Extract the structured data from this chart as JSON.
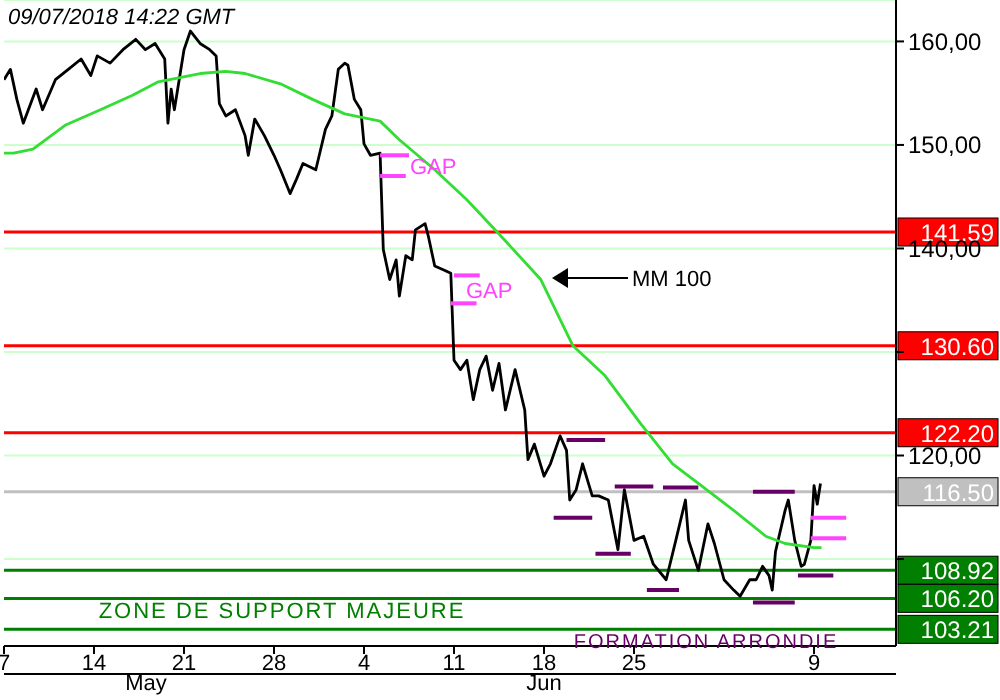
{
  "chart_data": {
    "type": "line",
    "xlim": [
      "2018-05-07T00:00",
      "2018-07-15T09:00"
    ],
    "xticks": [
      {
        "value": "2018-05-07",
        "label": "7"
      },
      {
        "value": "2018-05-14",
        "label": "14"
      },
      {
        "value": "2018-05-21",
        "label": "21"
      },
      {
        "value": "2018-05-28",
        "label": "28"
      },
      {
        "value": "2018-06-04",
        "label": "4"
      },
      {
        "value": "2018-06-11",
        "label": "11"
      },
      {
        "value": "2018-06-18",
        "label": "18"
      },
      {
        "value": "2018-06-25",
        "label": "25"
      },
      {
        "value": "2018-07-09",
        "label": "9"
      }
    ],
    "ylim": [
      101.6,
      164
    ],
    "yticks": [
      {
        "value": 110,
        "label": null
      },
      {
        "value": 120,
        "label": "120,00"
      },
      {
        "value": 130,
        "label": null
      },
      {
        "value": 140,
        "label": "140,00"
      },
      {
        "value": 150,
        "label": "150,00"
      },
      {
        "value": 160,
        "label": "160,00"
      }
    ],
    "grid": "y",
    "series": [
      {
        "color": "#000000",
        "x": [
          "2018-05-07T00:00",
          "2018-05-07T12:00",
          "2018-05-08T00:00",
          "2018-05-08T12:00",
          "2018-05-09T12:00",
          "2018-05-10T00:00",
          "2018-05-11T00:00",
          "2018-05-12T00:00",
          "2018-05-13T00:00",
          "2018-05-13T18:00",
          "2018-05-14T06:00",
          "2018-05-15T06:00",
          "2018-05-16T06:00",
          "2018-05-17T06:00",
          "2018-05-18T00:00",
          "2018-05-18T18:00",
          "2018-05-19T12:00",
          "2018-05-19T18:00",
          "2018-05-20T00:00",
          "2018-05-20T06:00",
          "2018-05-21T00:00",
          "2018-05-21T12:00",
          "2018-05-22T06:00",
          "2018-05-23T00:00",
          "2018-05-23T12:00",
          "2018-05-23T18:00",
          "2018-05-24T06:00",
          "2018-05-25T00:00",
          "2018-05-25T18:00",
          "2018-05-26T00:00",
          "2018-05-26T12:00",
          "2018-05-27T06:00",
          "2018-05-28T00:00",
          "2018-05-28T12:00",
          "2018-05-29T06:00",
          "2018-05-29T18:00",
          "2018-05-30T06:00",
          "2018-05-31T06:00",
          "2018-06-01T00:00",
          "2018-06-01T12:00",
          "2018-06-02T00:00",
          "2018-06-02T12:00",
          "2018-06-02T18:00",
          "2018-06-03T06:00",
          "2018-06-03T18:00",
          "2018-06-04T00:00",
          "2018-06-04T12:00",
          "2018-06-05T06:00",
          "2018-06-05T12:00",
          "2018-06-06T00:00",
          "2018-06-06T12:00",
          "2018-06-06T18:00",
          "2018-06-07T06:00",
          "2018-06-07T18:00",
          "2018-06-08T00:00",
          "2018-06-08T18:00",
          "2018-06-09T00:00",
          "2018-06-09T12:00",
          "2018-06-10T06:00",
          "2018-06-10T18:00",
          "2018-06-11T00:00",
          "2018-06-11T12:00",
          "2018-06-12T00:00",
          "2018-06-12T12:00",
          "2018-06-13T00:00",
          "2018-06-13T12:00",
          "2018-06-14T00:00",
          "2018-06-14T12:00",
          "2018-06-15T00:00",
          "2018-06-15T18:00",
          "2018-06-16T12:00",
          "2018-06-16T18:00",
          "2018-06-17T06:00",
          "2018-06-18T00:00",
          "2018-06-18T12:00",
          "2018-06-19T06:00",
          "2018-06-19T18:00",
          "2018-06-20T00:00",
          "2018-06-20T12:00",
          "2018-06-21T00:00",
          "2018-06-21T18:00",
          "2018-06-22T06:00",
          "2018-06-23T00:00",
          "2018-06-23T18:00",
          "2018-06-24T06:00",
          "2018-06-25T00:00",
          "2018-06-25T18:00",
          "2018-06-26T12:00",
          "2018-06-27T12:00",
          "2018-06-28T06:00",
          "2018-06-29T00:00",
          "2018-06-29T06:00",
          "2018-06-30T00:00",
          "2018-06-30T18:00",
          "2018-07-01T06:00",
          "2018-07-02T00:00",
          "2018-07-02T18:00",
          "2018-07-03T06:00",
          "2018-07-04T00:00",
          "2018-07-04T12:00",
          "2018-07-05T00:00",
          "2018-07-05T12:00",
          "2018-07-05T18:00",
          "2018-07-06T00:00",
          "2018-07-06T18:00",
          "2018-07-07T00:00",
          "2018-07-07T12:00",
          "2018-07-08T00:00",
          "2018-07-08T06:00",
          "2018-07-08T18:00",
          "2018-07-09T00:00",
          "2018-07-09T06:00",
          "2018-07-09T12:00"
        ],
        "values": [
          156.3,
          157.3,
          154.4,
          152.1,
          155.4,
          153.4,
          156.3,
          157.3,
          158.3,
          156.7,
          158.6,
          157.9,
          159.2,
          160.2,
          159.2,
          159.8,
          158.3,
          152.1,
          155.4,
          153.4,
          159.2,
          161,
          159.8,
          159.2,
          158.6,
          154,
          152.8,
          153.4,
          150.9,
          149,
          152.5,
          150.9,
          149,
          147.6,
          145.3,
          146.7,
          148.2,
          147.6,
          151.5,
          152.8,
          157.3,
          157.9,
          157.7,
          154.4,
          153.4,
          150.1,
          149,
          149.2,
          139.9,
          137,
          138.9,
          135.4,
          139.3,
          138.9,
          141.8,
          142.4,
          141.2,
          138.3,
          137.9,
          137.6,
          129.2,
          128.3,
          129.2,
          125.4,
          128.3,
          129.6,
          126.3,
          128.9,
          124.4,
          128.3,
          124.4,
          119.6,
          121.1,
          118,
          119.2,
          121.9,
          120.5,
          115.7,
          116.7,
          119.2,
          116.1,
          116.1,
          115.7,
          110.9,
          116.7,
          111.8,
          112.2,
          109.5,
          108,
          111.8,
          115.7,
          111.8,
          108.9,
          113.4,
          111.5,
          108,
          107,
          106.4,
          108,
          108,
          109.3,
          108.4,
          107,
          110.7,
          114.7,
          115.7,
          111.8,
          109.3,
          109.5,
          111.8,
          117.1,
          115.3,
          117.3
        ]
      },
      {
        "color": "#33dd33",
        "x": [
          "2018-05-07T00:00",
          "2018-05-07T18:00",
          "2018-05-09T06:00",
          "2018-05-11T18:00",
          "2018-05-14T12:00",
          "2018-05-17T00:00",
          "2018-05-19T00:00",
          "2018-05-22T06:00",
          "2018-05-24T06:00",
          "2018-05-25T18:00",
          "2018-05-28T12:00",
          "2018-05-31T00:00",
          "2018-06-02T12:00",
          "2018-06-05T06:00",
          "2018-06-06T18:00",
          "2018-06-09T12:00",
          "2018-06-12T00:00",
          "2018-06-14T12:00",
          "2018-06-17T18:00",
          "2018-06-20T06:00",
          "2018-06-22T18:00",
          "2018-06-25T12:00",
          "2018-06-28T00:00",
          "2018-06-30T00:00",
          "2018-07-02T18:00",
          "2018-07-05T06:00",
          "2018-07-06T18:00",
          "2018-07-09T00:00",
          "2018-07-09T14:00"
        ],
        "values": [
          149.2,
          149.2,
          149.6,
          151.9,
          153.4,
          154.8,
          156.1,
          156.9,
          157.1,
          156.9,
          155.9,
          154.4,
          153,
          152.3,
          150.5,
          147.6,
          144.7,
          141.4,
          137,
          130.6,
          127.7,
          123.1,
          119.2,
          117.3,
          114.7,
          112.2,
          111.5,
          111.1,
          111.1
        ]
      },
      {
        "color": "#ff44ff",
        "x": [
          "2018-06-05T06:00",
          "2018-06-07T12:00"
        ],
        "values": [
          149,
          149
        ]
      },
      {
        "color": "#ff44ff",
        "x": [
          "2018-06-05T06:00",
          "2018-06-07T06:00"
        ],
        "values": [
          147,
          147
        ]
      },
      {
        "color": "#ff44ff",
        "x": [
          "2018-06-11T00:00",
          "2018-06-13T00:00"
        ],
        "values": [
          137.4,
          137.4
        ]
      },
      {
        "color": "#ff44ff",
        "x": [
          "2018-06-10T18:00",
          "2018-06-12T18:00"
        ],
        "values": [
          134.7,
          134.7
        ]
      },
      {
        "color": "#ff44ff",
        "x": [
          "2018-07-08T18:00",
          "2018-07-11T12:00"
        ],
        "values": [
          114,
          114
        ]
      },
      {
        "color": "#ff44ff",
        "x": [
          "2018-07-08T18:00",
          "2018-07-11T12:00"
        ],
        "values": [
          112,
          112
        ]
      },
      {
        "color": "#660066",
        "x": [
          "2018-06-19T18:00",
          "2018-06-22T18:00"
        ],
        "values": [
          121.5,
          121.5
        ]
      },
      {
        "color": "#660066",
        "x": [
          "2018-06-18T18:00",
          "2018-06-21T18:00"
        ],
        "values": [
          114,
          114
        ]
      },
      {
        "color": "#660066",
        "x": [
          "2018-06-23T12:00",
          "2018-06-26T12:00"
        ],
        "values": [
          117,
          117
        ]
      },
      {
        "color": "#660066",
        "x": [
          "2018-06-22T00:00",
          "2018-06-24T18:00"
        ],
        "values": [
          110.5,
          110.5
        ]
      },
      {
        "color": "#660066",
        "x": [
          "2018-06-27T06:00",
          "2018-06-30T00:00"
        ],
        "values": [
          116.9,
          116.9
        ]
      },
      {
        "color": "#660066",
        "x": [
          "2018-06-26T00:00",
          "2018-06-28T12:00"
        ],
        "values": [
          107,
          107
        ]
      },
      {
        "color": "#660066",
        "x": [
          "2018-07-04T06:00",
          "2018-07-07T12:00"
        ],
        "values": [
          116.5,
          116.5
        ]
      },
      {
        "color": "#660066",
        "x": [
          "2018-07-04T06:00",
          "2018-07-07T12:00"
        ],
        "values": [
          105.8,
          105.8
        ]
      },
      {
        "color": "#660066",
        "x": [
          "2018-07-07T18:00",
          "2018-07-10T12:00"
        ],
        "values": [
          108.4,
          108.4
        ]
      }
    ],
    "ref_lines": [
      {
        "axis": "y",
        "value": 141.59,
        "label": "141.59",
        "color": "#ff0000"
      },
      {
        "axis": "y",
        "value": 130.6,
        "label": "130.60",
        "color": "#ff0000"
      },
      {
        "axis": "y",
        "value": 122.2,
        "label": "122.20",
        "color": "#ff0000"
      },
      {
        "axis": "y",
        "value": 116.5,
        "label": "116.50",
        "color": "#c0c0c0"
      },
      {
        "axis": "y",
        "value": 108.92,
        "label": "108.92",
        "color": "#007f00"
      },
      {
        "axis": "y",
        "value": 106.2,
        "label": "106.20",
        "color": "#007f00"
      },
      {
        "axis": "y",
        "value": 103.21,
        "label": "103.21",
        "color": "#007f00"
      }
    ],
    "annotations": [
      "09/07/2018 14:22 GMT",
      "GAP",
      "GAP",
      "MM 100",
      "ZONE DE SUPPORT MAJEURE",
      "FORMATION ARRONDIE",
      "May",
      "Jun"
    ]
  }
}
